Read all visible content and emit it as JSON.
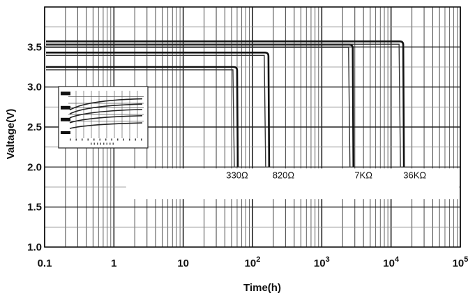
{
  "chart_data": {
    "type": "line",
    "title": "",
    "xlabel": "Time(h)",
    "ylabel": "Valtage(V)",
    "x_scale": "log",
    "xlim": [
      0.1,
      100000
    ],
    "ylim": [
      1.0,
      4.0
    ],
    "grid": true,
    "x_ticks": [
      {
        "value": 0.1,
        "base": "0.1",
        "exp": ""
      },
      {
        "value": 1,
        "base": "1",
        "exp": ""
      },
      {
        "value": 10,
        "base": "10",
        "exp": ""
      },
      {
        "value": 100,
        "base": "10",
        "exp": "2"
      },
      {
        "value": 1000,
        "base": "10",
        "exp": "3"
      },
      {
        "value": 10000,
        "base": "10",
        "exp": "4"
      },
      {
        "value": 100000,
        "base": "10",
        "exp": "5"
      }
    ],
    "y_ticks": [
      {
        "value": 1.0,
        "label": "1.0"
      },
      {
        "value": 1.5,
        "label": "1.5"
      },
      {
        "value": 2.0,
        "label": "2.0"
      },
      {
        "value": 2.5,
        "label": "2.5"
      },
      {
        "value": 3.0,
        "label": "3.0"
      },
      {
        "value": 3.5,
        "label": "3.5"
      }
    ],
    "series": [
      {
        "name": "330Ω",
        "plateau": 3.25,
        "end_time": 60
      },
      {
        "name": "820Ω",
        "plateau": 3.43,
        "end_time": 170
      },
      {
        "name": "7KΩ",
        "plateau": 3.53,
        "end_time": 2800
      },
      {
        "name": "36KΩ",
        "plateau": 3.57,
        "end_time": 15000
      }
    ],
    "series_labels": [
      {
        "text": "330Ω",
        "x": 60,
        "y": 1.86
      },
      {
        "text": "820Ω",
        "x": 280,
        "y": 1.86
      },
      {
        "text": "7KΩ",
        "x": 4000,
        "y": 1.86
      },
      {
        "text": "36KΩ",
        "x": 22000,
        "y": 1.86
      }
    ],
    "cutoff_voltage": 2.0
  }
}
